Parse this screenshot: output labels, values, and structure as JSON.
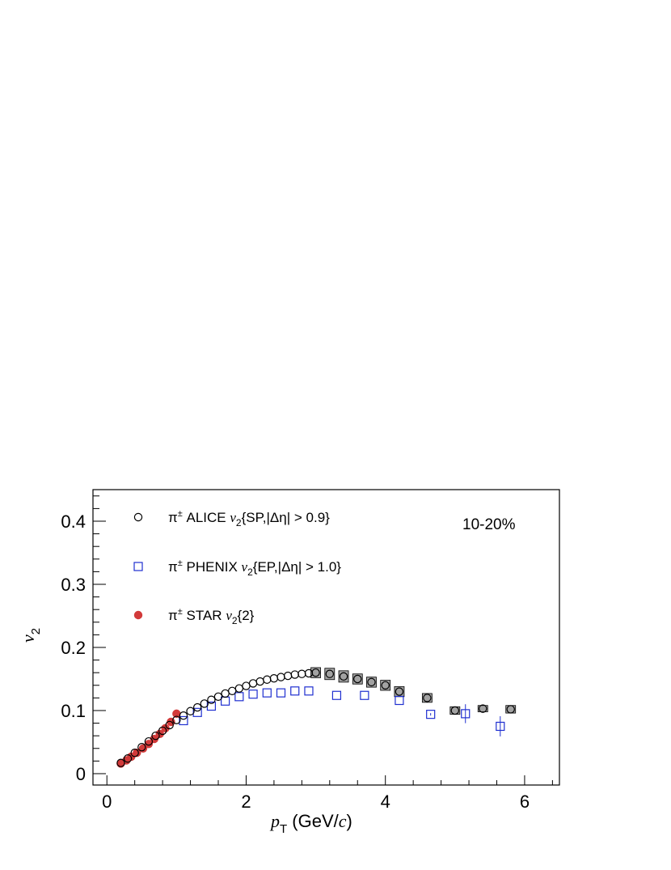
{
  "chart_data": {
    "type": "scatter",
    "xlabel": "p_T (GeV/c)",
    "ylabel": "v_2",
    "xlim": [
      -0.2,
      6.5
    ],
    "ylim": [
      -0.018,
      0.45
    ],
    "xticks": [
      "0",
      "2",
      "4",
      "6"
    ],
    "yticks": [
      "0",
      "0.1",
      "0.2",
      "0.3",
      "0.4"
    ],
    "annotation": "10-20%",
    "grid": false,
    "legend_position": "top-left",
    "series": [
      {
        "name": "π± ALICE v2{SP,|Δη| > 0.9}",
        "legend_parts": [
          "π",
          "±",
          " ALICE ",
          "v",
          "2",
          "{SP,|Δη| > 0.9}"
        ],
        "marker": "open-circle",
        "color": "#000000",
        "x": [
          0.2,
          0.3,
          0.4,
          0.5,
          0.6,
          0.7,
          0.8,
          0.9,
          1.0,
          1.1,
          1.2,
          1.3,
          1.4,
          1.5,
          1.6,
          1.7,
          1.8,
          1.9,
          2.0,
          2.1,
          2.2,
          2.3,
          2.4,
          2.5,
          2.6,
          2.7,
          2.8,
          2.9,
          3.0,
          3.2,
          3.4,
          3.6,
          3.8,
          4.0,
          4.2,
          4.6,
          5.0,
          5.4,
          5.8
        ],
        "y": [
          0.017,
          0.024,
          0.033,
          0.042,
          0.051,
          0.06,
          0.068,
          0.077,
          0.085,
          0.092,
          0.099,
          0.105,
          0.111,
          0.117,
          0.122,
          0.127,
          0.131,
          0.135,
          0.139,
          0.143,
          0.146,
          0.149,
          0.151,
          0.153,
          0.155,
          0.157,
          0.158,
          0.159,
          0.16,
          0.158,
          0.154,
          0.15,
          0.145,
          0.14,
          0.13,
          0.12,
          0.1,
          0.103,
          0.102
        ],
        "yerr": [
          0,
          0,
          0,
          0,
          0,
          0,
          0,
          0,
          0,
          0,
          0,
          0,
          0,
          0,
          0,
          0,
          0,
          0,
          0,
          0,
          0,
          0,
          0,
          0,
          0,
          0,
          0,
          0,
          0.008,
          0.009,
          0.009,
          0.008,
          0.008,
          0.008,
          0.008,
          0.007,
          0.006,
          0.005,
          0.006
        ]
      },
      {
        "name": "π± PHENIX v2{EP,|Δη| > 1.0}",
        "legend_parts": [
          "π",
          "±",
          " PHENIX ",
          "v",
          "2",
          "{EP,|Δη| > 1.0}"
        ],
        "marker": "open-square",
        "color": "#1f2fd0",
        "x": [
          1.1,
          1.3,
          1.5,
          1.7,
          1.9,
          2.1,
          2.3,
          2.5,
          2.7,
          2.9,
          3.3,
          3.7,
          4.2,
          4.65,
          5.15,
          5.65
        ],
        "y": [
          0.084,
          0.097,
          0.107,
          0.115,
          0.122,
          0.126,
          0.128,
          0.128,
          0.131,
          0.131,
          0.124,
          0.124,
          0.116,
          0.094,
          0.095,
          0.075
        ],
        "yerr": [
          0,
          0,
          0,
          0,
          0,
          0,
          0,
          0,
          0,
          0,
          0,
          0,
          0,
          0.002,
          0.015,
          0.016
        ]
      },
      {
        "name": "π± STAR v2{2}",
        "legend_parts": [
          "π",
          "±",
          " STAR ",
          "v",
          "2",
          "{2}"
        ],
        "marker": "filled-circle",
        "color": "#d23a3a",
        "x": [
          0.2,
          0.28,
          0.35,
          0.43,
          0.52,
          0.6,
          0.68,
          0.76,
          0.84,
          0.92,
          1.0
        ],
        "y": [
          0.016,
          0.021,
          0.027,
          0.033,
          0.04,
          0.047,
          0.055,
          0.063,
          0.072,
          0.082,
          0.095
        ]
      }
    ]
  }
}
